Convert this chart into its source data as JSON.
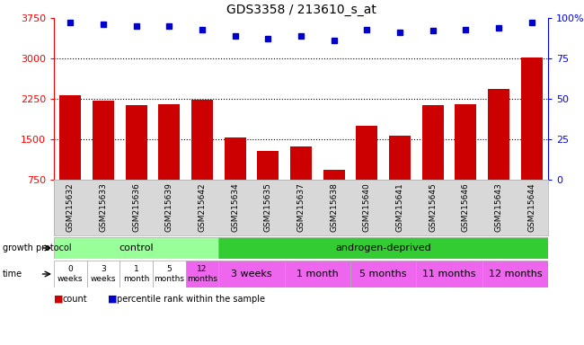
{
  "title": "GDS3358 / 213610_s_at",
  "samples": [
    "GSM215632",
    "GSM215633",
    "GSM215636",
    "GSM215639",
    "GSM215642",
    "GSM215634",
    "GSM215635",
    "GSM215637",
    "GSM215638",
    "GSM215640",
    "GSM215641",
    "GSM215645",
    "GSM215646",
    "GSM215643",
    "GSM215644"
  ],
  "bar_values": [
    2310,
    2210,
    2140,
    2150,
    2230,
    1540,
    1290,
    1370,
    940,
    1750,
    1570,
    2130,
    2150,
    2430,
    3020
  ],
  "percentile_values": [
    97,
    96,
    95,
    95,
    93,
    89,
    87,
    89,
    86,
    93,
    91,
    92,
    93,
    94,
    97
  ],
  "bar_color": "#cc0000",
  "percentile_color": "#0000cc",
  "ymin": 750,
  "ymax": 3750,
  "yticks": [
    750,
    1500,
    2250,
    3000,
    3750
  ],
  "y2min": 0,
  "y2max": 100,
  "y2ticks": [
    0,
    25,
    50,
    75,
    100
  ],
  "dotted_lines": [
    1500,
    2250,
    3000
  ],
  "n_control": 5,
  "n_androgen": 10,
  "control_color": "#99ff99",
  "androgen_color": "#33cc33",
  "time_control_labels": [
    "0\nweeks",
    "3\nweeks",
    "1\nmonth",
    "5\nmonths",
    "12\nmonths"
  ],
  "time_control_colors": [
    "#ffffff",
    "#ffffff",
    "#ffffff",
    "#ffffff",
    "#ee66ee"
  ],
  "time_androgen_labels": [
    "3 weeks",
    "1 month",
    "5 months",
    "11 months",
    "12 months"
  ],
  "time_androgen_color": "#ee66ee",
  "protocol_label": "growth protocol",
  "time_label": "time",
  "legend_count": "count",
  "legend_percentile": "percentile rank within the sample",
  "sample_bg_color": "#d8d8d8",
  "bg_color": "#ffffff"
}
